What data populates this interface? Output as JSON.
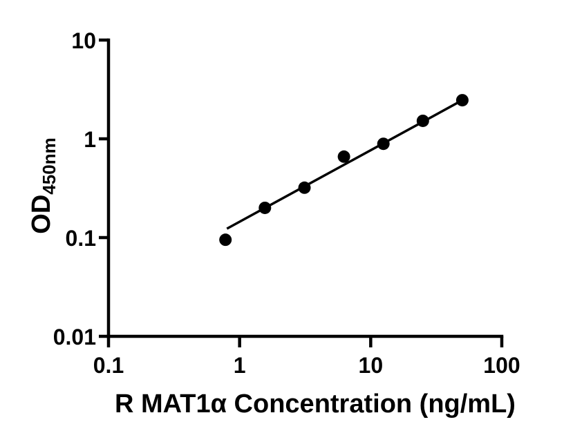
{
  "figure": {
    "background_color": "#ffffff",
    "foreground_color": "#000000"
  },
  "chart_data": {
    "type": "scatter",
    "title": "",
    "xlabel": "R MAT1α Concentration (ng/mL)",
    "ylabel": "OD",
    "ylabel_subscript": "450nm",
    "x_scale": "log",
    "y_scale": "log",
    "xlim": [
      0.1,
      100
    ],
    "ylim": [
      0.01,
      10
    ],
    "x_ticks": [
      0.1,
      1,
      10,
      100
    ],
    "x_tick_labels": [
      "0.1",
      "1",
      "10",
      "100"
    ],
    "y_ticks": [
      0.01,
      0.1,
      1,
      10
    ],
    "y_tick_labels": [
      "0.01",
      "0.1",
      "1",
      "10"
    ],
    "grid": false,
    "legend": "none",
    "axis_color": "#000000",
    "series": [
      {
        "name": "standard-curve-points",
        "marker": "filled-circle",
        "marker_color": "#000000",
        "x": [
          0.78,
          1.56,
          3.125,
          6.25,
          12.5,
          25,
          50
        ],
        "y": [
          0.095,
          0.2,
          0.32,
          0.66,
          0.89,
          1.52,
          2.46
        ]
      }
    ],
    "trend_line": {
      "name": "fit-line",
      "color": "#000000",
      "x_start": 0.8,
      "y_start": 0.123,
      "x_end": 50,
      "y_end": 2.46
    }
  }
}
